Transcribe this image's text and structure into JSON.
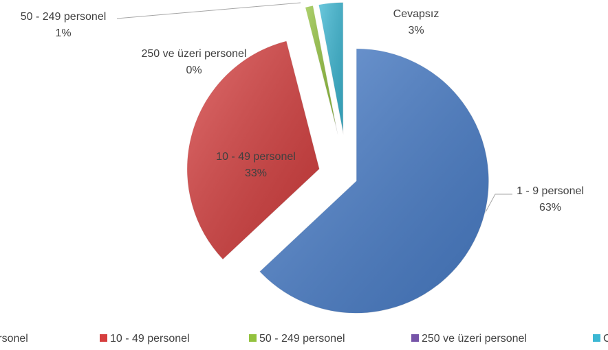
{
  "chart_data": {
    "type": "pie",
    "categories": [
      "1 - 9 personel",
      "10 - 49 personel",
      "50 - 249 personel",
      "250 ve üzeri personel",
      "Cevapsız"
    ],
    "values": [
      63,
      33,
      1,
      0,
      3
    ],
    "value_labels": [
      "63%",
      "33%",
      "1%",
      "0%",
      "3%"
    ],
    "colors": [
      "#4a7fcb",
      "#d63e3e",
      "#93c23e",
      "#7654a8",
      "#3bb7d3"
    ],
    "legend": "bottom"
  }
}
